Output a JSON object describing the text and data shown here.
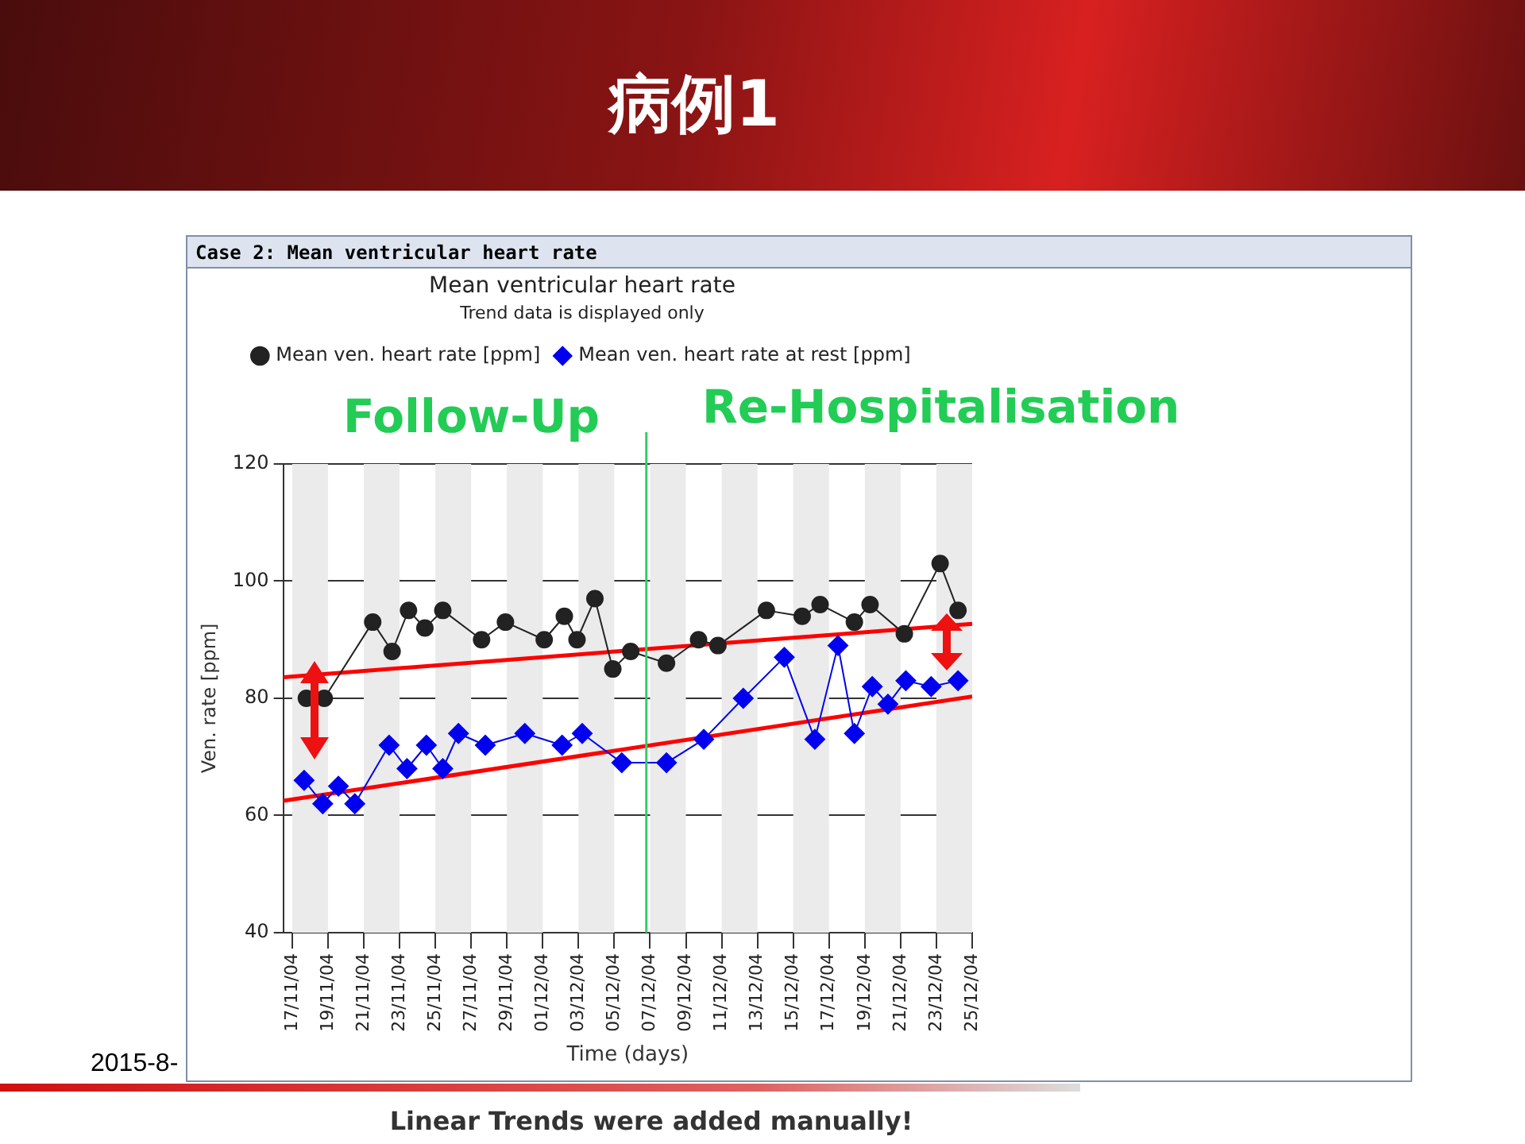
{
  "chart_data": {
    "type": "line",
    "title": "Mean ventricular heart rate",
    "subtitle": "Trend data is displayed only",
    "xlabel": "Time (days)",
    "ylabel": "Ven. rate [ppm]",
    "annotations": [
      "病例1",
      "Case 2: Mean ventricular heart rate",
      "Follow-Up",
      "Re-Hospitalisation",
      "2015-8-",
      "Linear Trends were added manually!"
    ],
    "xlim": [
      "--11-16T12:00",
      "--12-25"
    ],
    "xticks": [
      {
        "value": "--11-17",
        "label": "17/11/04"
      },
      {
        "value": "--11-19",
        "label": "19/11/04"
      },
      {
        "value": "--11-21",
        "label": "21/11/04"
      },
      {
        "value": "--11-23",
        "label": "23/11/04"
      },
      {
        "value": "--11-25",
        "label": "25/11/04"
      },
      {
        "value": "--11-27",
        "label": "27/11/04"
      },
      {
        "value": "--11-29",
        "label": "29/11/04"
      },
      {
        "value": "--12-01",
        "label": "01/12/04"
      },
      {
        "value": "--12-03",
        "label": "03/12/04"
      },
      {
        "value": "--12-05",
        "label": "05/12/04"
      },
      {
        "value": "--12-07",
        "label": "07/12/04"
      },
      {
        "value": "--12-09",
        "label": "09/12/04"
      },
      {
        "value": "--12-11",
        "label": "11/12/04"
      },
      {
        "value": "--12-13",
        "label": "13/12/04"
      },
      {
        "value": "--12-15",
        "label": "15/12/04"
      },
      {
        "value": "--12-17",
        "label": "17/12/04"
      },
      {
        "value": "--12-19",
        "label": "19/12/04"
      },
      {
        "value": "--12-21",
        "label": "21/12/04"
      },
      {
        "value": "--12-23",
        "label": "23/12/04"
      },
      {
        "value": "--12-25",
        "label": "25/12/04"
      }
    ],
    "ylim": [
      40,
      120
    ],
    "yticks": [
      40,
      60,
      80,
      100,
      120
    ],
    "grid": "y",
    "legend": "top",
    "ref_lines": [
      {
        "axis": "x",
        "value": "--12-06T19:00",
        "color": "#33cc66"
      }
    ],
    "series": [
      {
        "name": "Mean ven. heart rate [ppm]",
        "color": "#222222",
        "marker": "circle",
        "x": [
          "--11-17T19:00",
          "--11-18T19:00",
          "--11-21T12:00",
          "--11-22T14:00",
          "--11-23T12:00",
          "--11-24T10:00",
          "--11-25T10:00",
          "--11-27T14:00",
          "--11-28T22:00",
          "--12-01T02:00",
          "--12-02T05:00",
          "--12-02T22:00",
          "--12-03T22:00",
          "--12-04T22:00",
          "--12-05T22:00",
          "--12-07T22:00",
          "--12-09T17:00",
          "--12-10T19:00",
          "--12-13T12:00",
          "--12-15T12:00",
          "--12-16T12:00",
          "--12-18T10:00",
          "--12-19T07:00",
          "--12-21T05:00",
          "--12-23T05:00",
          "--12-24T05:00"
        ],
        "values": [
          80,
          80,
          93,
          88,
          95,
          92,
          95,
          90,
          93,
          90,
          94,
          90,
          97,
          85,
          88,
          86,
          90,
          89,
          95,
          94,
          96,
          93,
          96,
          91,
          103,
          95
        ]
      },
      {
        "name": "Mean ven. heart rate at rest [ppm]",
        "color": "#0000ee",
        "marker": "diamond",
        "x": [
          "--11-17T16:00",
          "--11-18T17:00",
          "--11-19T14:00",
          "--11-20T12:00",
          "--11-22T10:00",
          "--11-23T10:00",
          "--11-24T12:00",
          "--11-25T10:00",
          "--11-26T07:00",
          "--11-27T19:00",
          "--11-30T00:00",
          "--12-02T02:00",
          "--12-03T05:00",
          "--12-05T10:00",
          "--12-07T22:00",
          "--12-10T00:00",
          "--12-12T05:00",
          "--12-14T12:00",
          "--12-16T05:00",
          "--12-17T12:00",
          "--12-18T10:00",
          "--12-19T10:00",
          "--12-20T07:00",
          "--12-21T07:00",
          "--12-22T17:00",
          "--12-24T05:00"
        ],
        "values": [
          66,
          62,
          65,
          62,
          72,
          68,
          72,
          68,
          74,
          72,
          74,
          72,
          74,
          69,
          69,
          73,
          80,
          87,
          73,
          89,
          74,
          82,
          79,
          83,
          82,
          83
        ]
      },
      {
        "type": "line",
        "color": "#ff0000",
        "marker": "none",
        "x": [
          "--11-16T12:00",
          "--12-25"
        ],
        "values": [
          83.6,
          92.7
        ]
      },
      {
        "type": "line",
        "color": "#ff0000",
        "marker": "none",
        "x": [
          "--11-16T12:00",
          "--12-25"
        ],
        "values": [
          62.5,
          80.3
        ]
      }
    ]
  }
}
